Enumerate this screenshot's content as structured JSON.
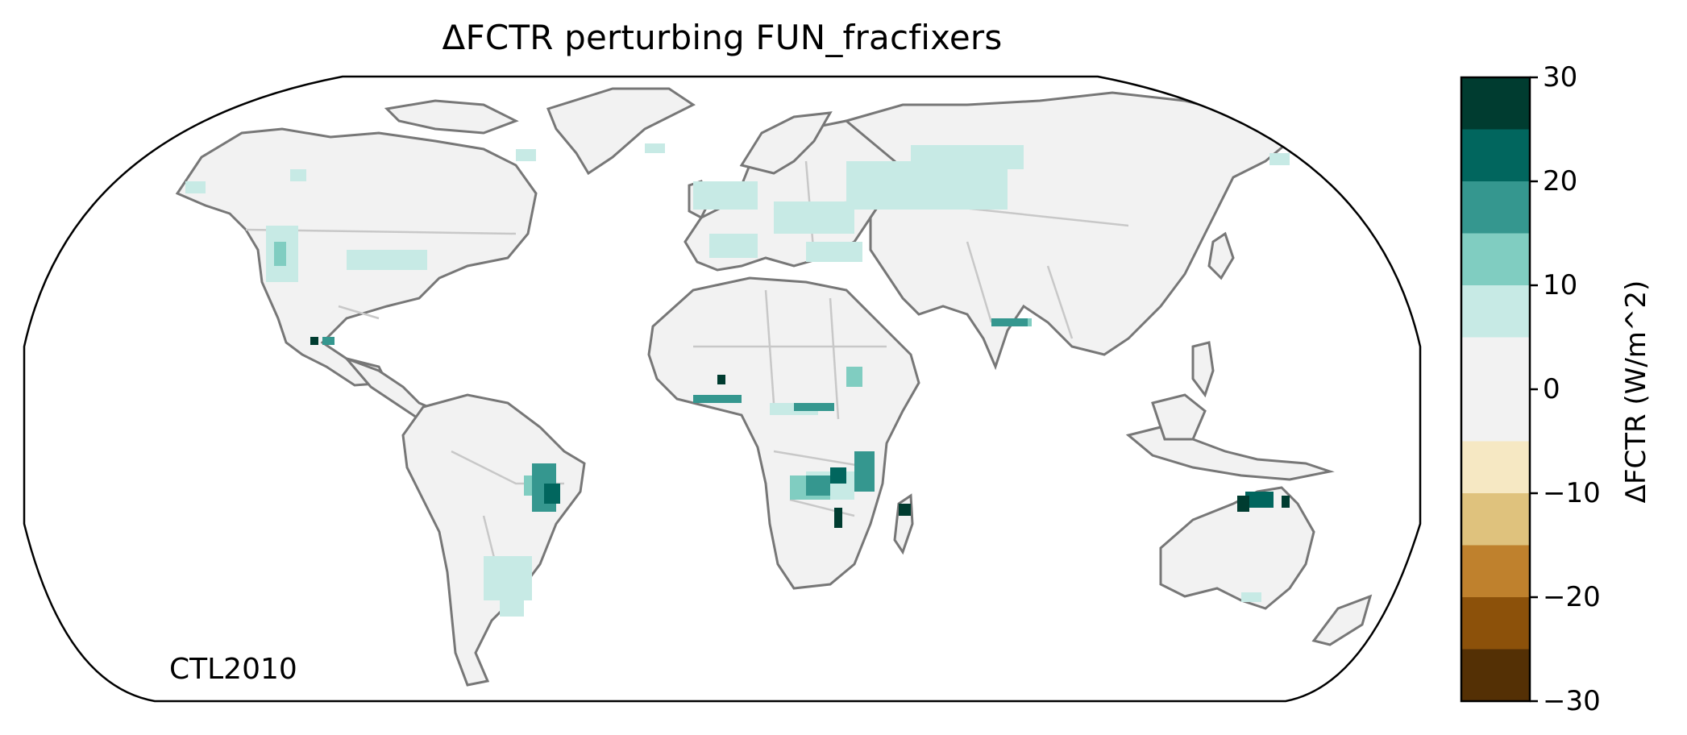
{
  "title": "ΔFCTR perturbing FUN_fracfixers",
  "panel_label": "CTL2010",
  "colorbar": {
    "label": "ΔFCTR (W/m^2)",
    "ticks": [
      "30",
      "20",
      "10",
      "0",
      "−10",
      "−20",
      "−30"
    ],
    "tick_values": [
      30,
      20,
      10,
      0,
      -10,
      -20,
      -30
    ],
    "bins_top_to_bottom": [
      {
        "range": [
          25,
          30
        ],
        "color": "#003c30"
      },
      {
        "range": [
          20,
          25
        ],
        "color": "#01665e"
      },
      {
        "range": [
          15,
          20
        ],
        "color": "#35978f"
      },
      {
        "range": [
          10,
          15
        ],
        "color": "#80cdc1"
      },
      {
        "range": [
          5,
          10
        ],
        "color": "#c7eae5"
      },
      {
        "range": [
          -5,
          5
        ],
        "color": "#f2f2f2"
      },
      {
        "range": [
          -10,
          -5
        ],
        "color": "#f6e8c3"
      },
      {
        "range": [
          -15,
          -10
        ],
        "color": "#dfc27d"
      },
      {
        "range": [
          -20,
          -15
        ],
        "color": "#bf812d"
      },
      {
        "range": [
          -25,
          -20
        ],
        "color": "#8c510a"
      },
      {
        "range": [
          -30,
          -25
        ],
        "color": "#543005"
      }
    ]
  },
  "colors": {
    "land_neutral": "#f2f2f2",
    "coastline": "#777777",
    "borders": "#c8c8c8"
  },
  "projection": "Robinson"
}
